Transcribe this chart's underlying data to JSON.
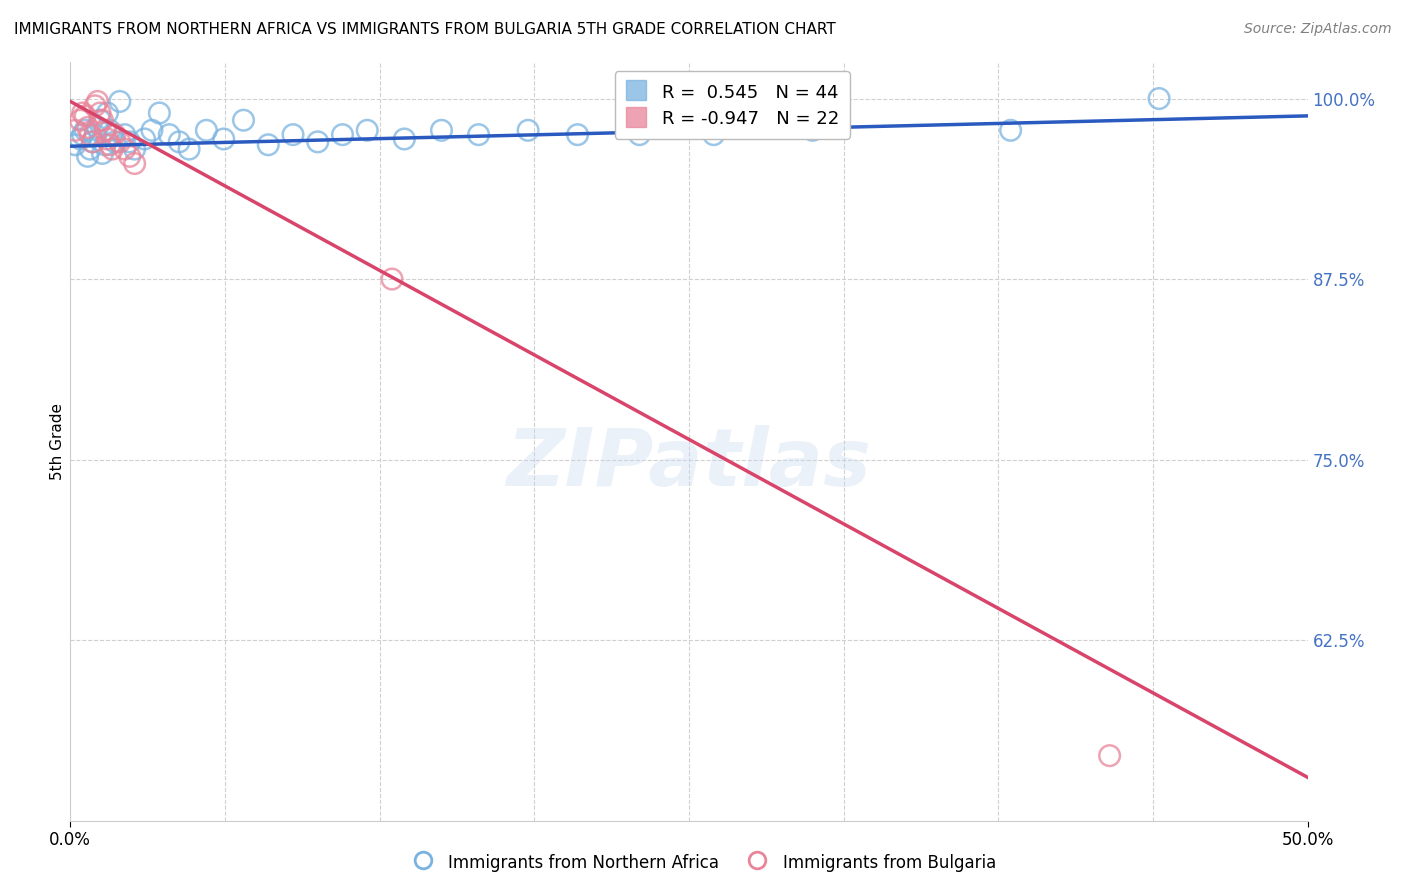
{
  "title": "IMMIGRANTS FROM NORTHERN AFRICA VS IMMIGRANTS FROM BULGARIA 5TH GRADE CORRELATION CHART",
  "source": "Source: ZipAtlas.com",
  "ylabel": "5th Grade",
  "xlabel": "",
  "xlim": [
    0.0,
    0.5
  ],
  "ylim": [
    0.5,
    1.025
  ],
  "xtick_labels": [
    "0.0%",
    "50.0%"
  ],
  "xtick_positions": [
    0.0,
    0.5
  ],
  "ytick_labels": [
    "100.0%",
    "87.5%",
    "75.0%",
    "62.5%"
  ],
  "ytick_positions": [
    1.0,
    0.875,
    0.75,
    0.625
  ],
  "blue_color": "#7ab3e0",
  "pink_color": "#e8859a",
  "blue_line_color": "#2a5abf",
  "pink_line_color": "#d9456a",
  "legend_blue_label": "Immigrants from Northern Africa",
  "legend_pink_label": "Immigrants from Bulgaria",
  "legend_R_blue": "R =  0.545",
  "legend_N_blue": "N = 44",
  "legend_R_pink": "R = -0.947",
  "legend_N_pink": "N = 22",
  "watermark": "ZIPatlas",
  "blue_scatter_x": [
    0.002,
    0.004,
    0.005,
    0.006,
    0.007,
    0.008,
    0.009,
    0.01,
    0.011,
    0.012,
    0.013,
    0.014,
    0.015,
    0.016,
    0.017,
    0.018,
    0.02,
    0.022,
    0.024,
    0.026,
    0.03,
    0.033,
    0.036,
    0.04,
    0.044,
    0.048,
    0.055,
    0.062,
    0.07,
    0.08,
    0.09,
    0.1,
    0.11,
    0.12,
    0.135,
    0.15,
    0.165,
    0.185,
    0.205,
    0.23,
    0.26,
    0.3,
    0.38,
    0.44
  ],
  "blue_scatter_y": [
    0.968,
    0.972,
    0.975,
    0.978,
    0.96,
    0.965,
    0.97,
    0.975,
    0.98,
    0.985,
    0.962,
    0.968,
    0.99,
    0.978,
    0.975,
    0.97,
    0.998,
    0.975,
    0.97,
    0.965,
    0.972,
    0.978,
    0.99,
    0.975,
    0.97,
    0.965,
    0.978,
    0.972,
    0.985,
    0.968,
    0.975,
    0.97,
    0.975,
    0.978,
    0.972,
    0.978,
    0.975,
    0.978,
    0.975,
    0.975,
    0.975,
    0.978,
    0.978,
    1.0
  ],
  "pink_scatter_x": [
    0.002,
    0.004,
    0.005,
    0.006,
    0.007,
    0.008,
    0.009,
    0.01,
    0.011,
    0.012,
    0.013,
    0.014,
    0.015,
    0.016,
    0.017,
    0.018,
    0.02,
    0.022,
    0.024,
    0.026,
    0.13,
    0.42
  ],
  "pink_scatter_y": [
    0.978,
    0.985,
    0.99,
    0.988,
    0.98,
    0.975,
    0.97,
    0.995,
    0.998,
    0.99,
    0.985,
    0.978,
    0.972,
    0.968,
    0.965,
    0.975,
    0.97,
    0.965,
    0.96,
    0.955,
    0.875,
    0.545
  ],
  "blue_trend_x": [
    0.0,
    0.5
  ],
  "blue_trend_y": [
    0.967,
    0.988
  ],
  "pink_trend_x": [
    0.0,
    0.5
  ],
  "pink_trend_y": [
    0.998,
    0.53
  ],
  "grid_color": "#d0d0d0",
  "right_axis_color": "#4472c4",
  "inner_xticks": [
    0.0625,
    0.125,
    0.1875,
    0.25,
    0.3125,
    0.375,
    0.4375
  ]
}
